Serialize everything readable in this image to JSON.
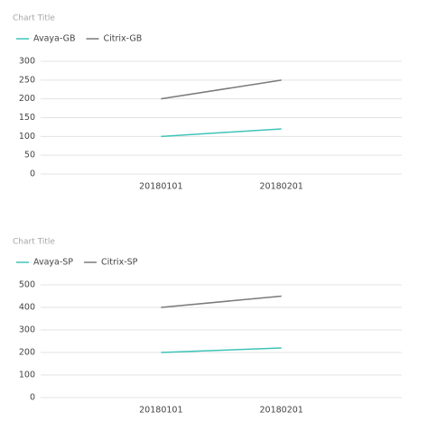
{
  "chart_data": [
    {
      "type": "line",
      "title": "Chart Title",
      "categories": [
        "20180101",
        "20180201"
      ],
      "series": [
        {
          "name": "Avaya-GB",
          "color": "#3fc4b8",
          "values": [
            100,
            120
          ]
        },
        {
          "name": "Citrix-GB",
          "color": "#7a7a7a",
          "values": [
            200,
            250
          ]
        }
      ],
      "ylim": [
        0,
        300
      ],
      "yticks": [
        0,
        50,
        100,
        150,
        200,
        250,
        300
      ],
      "grid": true,
      "legend": "top-left"
    },
    {
      "type": "line",
      "title": "Chart Title",
      "categories": [
        "20180101",
        "20180201"
      ],
      "series": [
        {
          "name": "Avaya-SP",
          "color": "#3fc4b8",
          "values": [
            200,
            220
          ]
        },
        {
          "name": "Citrix-SP",
          "color": "#7a7a7a",
          "values": [
            400,
            450
          ]
        }
      ],
      "ylim": [
        0,
        500
      ],
      "yticks": [
        0,
        100,
        200,
        300,
        400,
        500
      ],
      "grid": true,
      "legend": "top-left"
    }
  ]
}
